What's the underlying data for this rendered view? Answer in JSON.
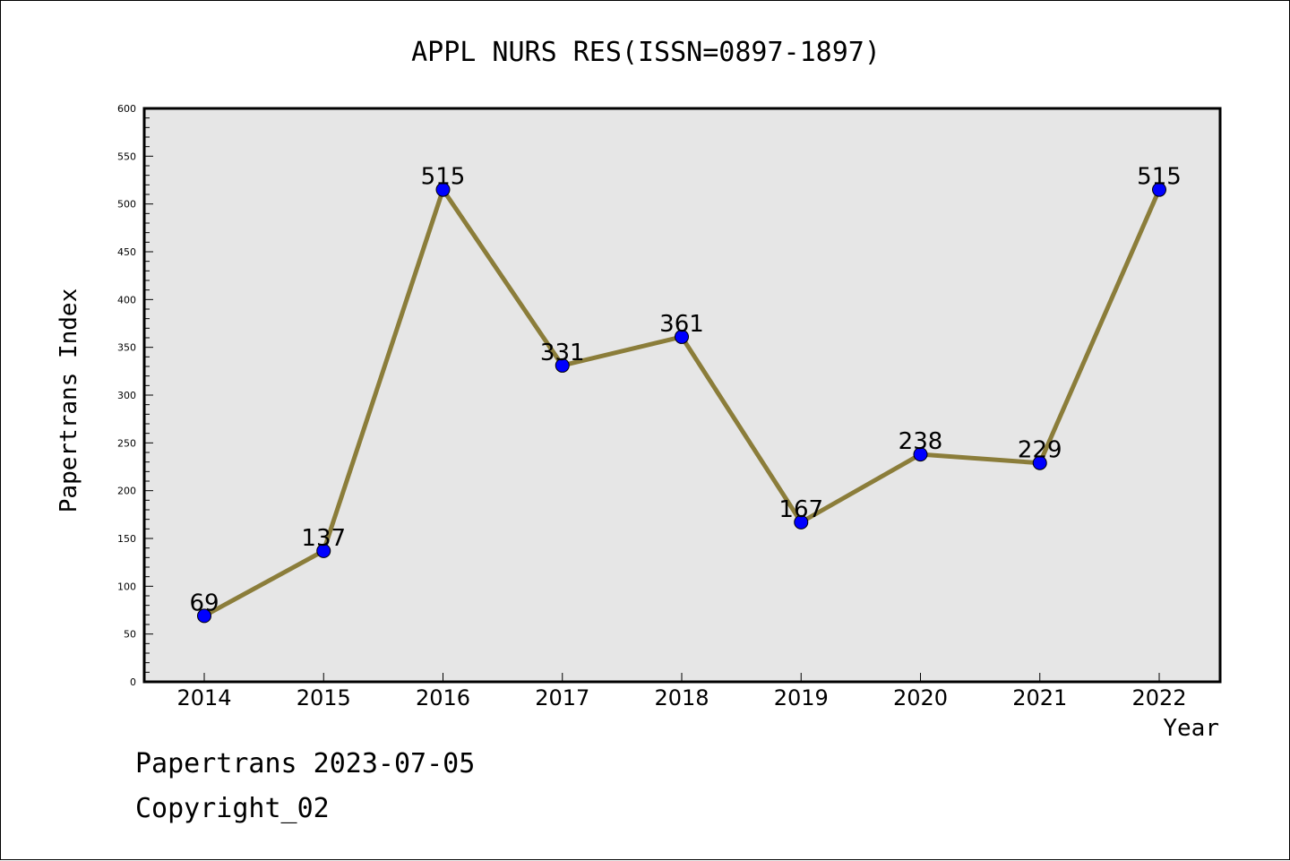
{
  "chart_data": {
    "type": "line",
    "title": "APPL NURS RES(ISSN=0897-1897)",
    "xlabel": "Year",
    "ylabel": "Papertrans Index",
    "categories": [
      "2014",
      "2015",
      "2016",
      "2017",
      "2018",
      "2019",
      "2020",
      "2021",
      "2022"
    ],
    "values": [
      69,
      137,
      515,
      331,
      361,
      167,
      238,
      229,
      515
    ],
    "data_labels": [
      "69",
      "137",
      "515",
      "331",
      "361",
      "167",
      "238",
      "229",
      "515"
    ],
    "ylim": [
      0,
      600
    ],
    "y_ticks": [
      0,
      50,
      100,
      150,
      200,
      250,
      300,
      350,
      400,
      450,
      500,
      550,
      600
    ],
    "y_tick_labels": [
      "0",
      "50",
      "100",
      "150",
      "200",
      "250",
      "300",
      "350",
      "400",
      "450",
      "500",
      "550",
      "600"
    ],
    "grid": false,
    "legend": "none",
    "colors": {
      "line": "#8b7d3a",
      "marker": "#0000ff",
      "plot_background": "#e6e6e6",
      "axes": "#000000"
    }
  },
  "footer": {
    "line1": "Papertrans 2023-07-05",
    "line2": "Copyright_02"
  }
}
